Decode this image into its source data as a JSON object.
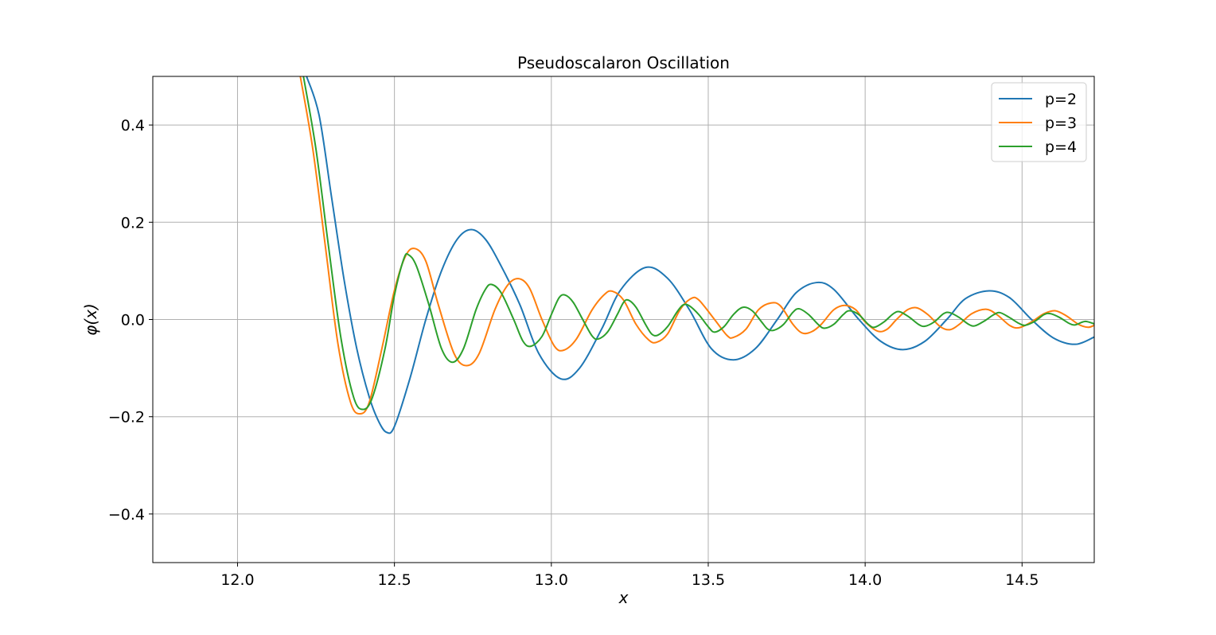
{
  "chart_data": {
    "type": "line",
    "title": "Pseudoscalaron Oscillation",
    "xlabel": "x",
    "ylabel": "φ(x)",
    "xlim": [
      11.73,
      14.73
    ],
    "ylim": [
      -0.5,
      0.5
    ],
    "x_ticks": [
      12.0,
      12.5,
      13.0,
      13.5,
      14.0,
      14.5
    ],
    "x_tick_labels": [
      "12.0",
      "12.5",
      "13.0",
      "13.5",
      "14.0",
      "14.5"
    ],
    "y_ticks": [
      0.4,
      0.2,
      0.0,
      -0.2,
      -0.4
    ],
    "y_tick_labels": [
      "0.4",
      "0.2",
      "0.0",
      "−0.2",
      "−0.4"
    ],
    "grid": true,
    "legend_position": "top-right",
    "series": [
      {
        "name": "p=2",
        "color": "#1f77b4",
        "points": [
          [
            12.22,
            0.5
          ],
          [
            12.26,
            0.42
          ],
          [
            12.3,
            0.25
          ],
          [
            12.34,
            0.08
          ],
          [
            12.38,
            -0.06
          ],
          [
            12.42,
            -0.16
          ],
          [
            12.45,
            -0.21
          ],
          [
            12.475,
            -0.232
          ],
          [
            12.5,
            -0.22
          ],
          [
            12.55,
            -0.12
          ],
          [
            12.6,
            0.0
          ],
          [
            12.65,
            0.1
          ],
          [
            12.7,
            0.165
          ],
          [
            12.745,
            0.185
          ],
          [
            12.79,
            0.165
          ],
          [
            12.84,
            0.11
          ],
          [
            12.9,
            0.03
          ],
          [
            12.96,
            -0.07
          ],
          [
            13.03,
            -0.122
          ],
          [
            13.09,
            -0.1
          ],
          [
            13.16,
            -0.02
          ],
          [
            13.22,
            0.06
          ],
          [
            13.3,
            0.107
          ],
          [
            13.37,
            0.085
          ],
          [
            13.44,
            0.02
          ],
          [
            13.51,
            -0.06
          ],
          [
            13.58,
            -0.083
          ],
          [
            13.65,
            -0.06
          ],
          [
            13.72,
            0.0
          ],
          [
            13.78,
            0.055
          ],
          [
            13.845,
            0.076
          ],
          [
            13.9,
            0.062
          ],
          [
            13.98,
            0.0
          ],
          [
            14.05,
            -0.045
          ],
          [
            14.12,
            -0.062
          ],
          [
            14.19,
            -0.045
          ],
          [
            14.26,
            0.0
          ],
          [
            14.32,
            0.043
          ],
          [
            14.395,
            0.059
          ],
          [
            14.46,
            0.045
          ],
          [
            14.53,
            0.0
          ],
          [
            14.6,
            -0.038
          ],
          [
            14.67,
            -0.051
          ],
          [
            14.73,
            -0.036
          ]
        ]
      },
      {
        "name": "p=3",
        "color": "#ff7f0e",
        "points": [
          [
            12.2,
            0.5
          ],
          [
            12.24,
            0.35
          ],
          [
            12.28,
            0.15
          ],
          [
            12.32,
            -0.05
          ],
          [
            12.36,
            -0.17
          ],
          [
            12.39,
            -0.194
          ],
          [
            12.42,
            -0.17
          ],
          [
            12.46,
            -0.06
          ],
          [
            12.5,
            0.06
          ],
          [
            12.535,
            0.13
          ],
          [
            12.565,
            0.146
          ],
          [
            12.6,
            0.12
          ],
          [
            12.64,
            0.03
          ],
          [
            12.69,
            -0.07
          ],
          [
            12.73,
            -0.095
          ],
          [
            12.77,
            -0.07
          ],
          [
            12.82,
            0.02
          ],
          [
            12.86,
            0.07
          ],
          [
            12.895,
            0.084
          ],
          [
            12.93,
            0.065
          ],
          [
            12.97,
            0.0
          ],
          [
            13.01,
            -0.055
          ],
          [
            13.04,
            -0.063
          ],
          [
            13.08,
            -0.04
          ],
          [
            13.13,
            0.02
          ],
          [
            13.17,
            0.052
          ],
          [
            13.195,
            0.058
          ],
          [
            13.23,
            0.04
          ],
          [
            13.27,
            -0.01
          ],
          [
            13.31,
            -0.042
          ],
          [
            13.335,
            -0.047
          ],
          [
            13.37,
            -0.03
          ],
          [
            13.41,
            0.02
          ],
          [
            13.445,
            0.043
          ],
          [
            13.47,
            0.04
          ],
          [
            13.52,
            0.0
          ],
          [
            13.56,
            -0.033
          ],
          [
            13.58,
            -0.037
          ],
          [
            13.62,
            -0.02
          ],
          [
            13.66,
            0.02
          ],
          [
            13.7,
            0.034
          ],
          [
            13.73,
            0.028
          ],
          [
            13.77,
            -0.01
          ],
          [
            13.8,
            -0.028
          ],
          [
            13.83,
            -0.025
          ],
          [
            13.86,
            -0.01
          ],
          [
            13.9,
            0.02
          ],
          [
            13.935,
            0.029
          ],
          [
            13.97,
            0.02
          ],
          [
            14.0,
            -0.005
          ],
          [
            14.04,
            -0.024
          ],
          [
            14.07,
            -0.02
          ],
          [
            14.1,
            0.0
          ],
          [
            14.135,
            0.02
          ],
          [
            14.165,
            0.024
          ],
          [
            14.2,
            0.01
          ],
          [
            14.24,
            -0.015
          ],
          [
            14.27,
            -0.021
          ],
          [
            14.3,
            -0.01
          ],
          [
            14.34,
            0.012
          ],
          [
            14.385,
            0.021
          ],
          [
            14.42,
            0.01
          ],
          [
            14.46,
            -0.012
          ],
          [
            14.49,
            -0.017
          ],
          [
            14.53,
            -0.005
          ],
          [
            14.57,
            0.012
          ],
          [
            14.605,
            0.018
          ],
          [
            14.64,
            0.008
          ],
          [
            14.68,
            -0.01
          ],
          [
            14.71,
            -0.016
          ],
          [
            14.73,
            -0.012
          ]
        ]
      },
      {
        "name": "p=4",
        "color": "#2ca02c",
        "points": [
          [
            12.21,
            0.5
          ],
          [
            12.25,
            0.35
          ],
          [
            12.29,
            0.15
          ],
          [
            12.33,
            -0.04
          ],
          [
            12.37,
            -0.16
          ],
          [
            12.4,
            -0.185
          ],
          [
            12.43,
            -0.16
          ],
          [
            12.47,
            -0.06
          ],
          [
            12.5,
            0.05
          ],
          [
            12.53,
            0.125
          ],
          [
            12.545,
            0.133
          ],
          [
            12.57,
            0.11
          ],
          [
            12.61,
            0.03
          ],
          [
            12.65,
            -0.06
          ],
          [
            12.685,
            -0.088
          ],
          [
            12.72,
            -0.06
          ],
          [
            12.76,
            0.02
          ],
          [
            12.79,
            0.062
          ],
          [
            12.81,
            0.072
          ],
          [
            12.84,
            0.055
          ],
          [
            12.88,
            0.0
          ],
          [
            12.91,
            -0.045
          ],
          [
            12.935,
            -0.055
          ],
          [
            12.97,
            -0.035
          ],
          [
            13.0,
            0.01
          ],
          [
            13.025,
            0.045
          ],
          [
            13.045,
            0.05
          ],
          [
            13.07,
            0.035
          ],
          [
            13.1,
            0.0
          ],
          [
            13.13,
            -0.034
          ],
          [
            13.15,
            -0.04
          ],
          [
            13.18,
            -0.025
          ],
          [
            13.21,
            0.01
          ],
          [
            13.23,
            0.035
          ],
          [
            13.245,
            0.04
          ],
          [
            13.27,
            0.025
          ],
          [
            13.3,
            -0.01
          ],
          [
            13.32,
            -0.03
          ],
          [
            13.34,
            -0.032
          ],
          [
            13.37,
            -0.015
          ],
          [
            13.4,
            0.015
          ],
          [
            13.42,
            0.03
          ],
          [
            13.44,
            0.028
          ],
          [
            13.47,
            0.01
          ],
          [
            13.5,
            -0.015
          ],
          [
            13.52,
            -0.026
          ],
          [
            13.55,
            -0.015
          ],
          [
            13.58,
            0.01
          ],
          [
            13.61,
            0.025
          ],
          [
            13.64,
            0.018
          ],
          [
            13.67,
            -0.005
          ],
          [
            13.69,
            -0.02
          ],
          [
            13.71,
            -0.022
          ],
          [
            13.74,
            -0.01
          ],
          [
            13.77,
            0.015
          ],
          [
            13.79,
            0.022
          ],
          [
            13.82,
            0.01
          ],
          [
            13.85,
            -0.01
          ],
          [
            13.87,
            -0.018
          ],
          [
            13.9,
            -0.01
          ],
          [
            13.93,
            0.01
          ],
          [
            13.95,
            0.018
          ],
          [
            13.98,
            0.01
          ],
          [
            14.01,
            -0.01
          ],
          [
            14.03,
            -0.016
          ],
          [
            14.06,
            -0.005
          ],
          [
            14.09,
            0.012
          ],
          [
            14.11,
            0.016
          ],
          [
            14.14,
            0.005
          ],
          [
            14.17,
            -0.01
          ],
          [
            14.19,
            -0.014
          ],
          [
            14.22,
            -0.005
          ],
          [
            14.25,
            0.012
          ],
          [
            14.27,
            0.014
          ],
          [
            14.3,
            0.004
          ],
          [
            14.33,
            -0.01
          ],
          [
            14.35,
            -0.013
          ],
          [
            14.38,
            -0.003
          ],
          [
            14.41,
            0.01
          ],
          [
            14.43,
            0.014
          ],
          [
            14.46,
            0.004
          ],
          [
            14.49,
            -0.008
          ],
          [
            14.51,
            -0.012
          ],
          [
            14.54,
            -0.004
          ],
          [
            14.57,
            0.01
          ],
          [
            14.59,
            0.012
          ],
          [
            14.62,
            0.004
          ],
          [
            14.65,
            -0.008
          ],
          [
            14.67,
            -0.011
          ],
          [
            14.7,
            -0.004
          ],
          [
            14.73,
            -0.009
          ]
        ]
      }
    ]
  }
}
